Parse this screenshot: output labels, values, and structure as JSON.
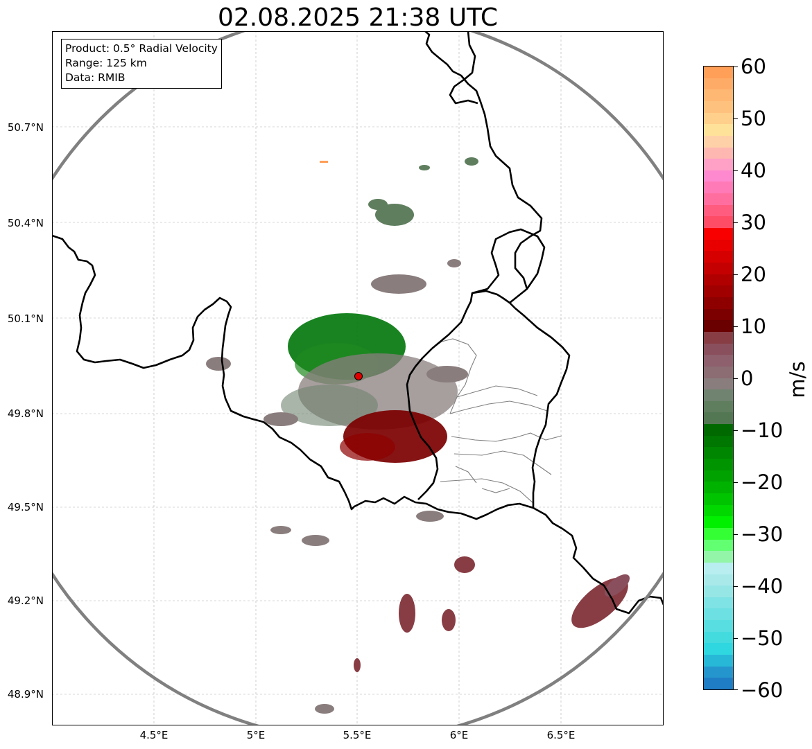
{
  "title": "02.08.2025 21:38 UTC",
  "info_box": {
    "product": "Product: 0.5° Radial Velocity",
    "range": "Range: 125 km",
    "data": "Data: RMIB"
  },
  "axes": {
    "lat_labels": [
      "50.7°N",
      "50.4°N",
      "50.1°N",
      "49.8°N",
      "49.5°N",
      "49.2°N",
      "48.9°N"
    ],
    "lat_values": [
      50.7,
      50.4,
      50.1,
      49.8,
      49.5,
      49.2,
      48.9
    ],
    "lon_labels": [
      "4.5°E",
      "5°E",
      "5.5°E",
      "6°E",
      "6.5°E"
    ],
    "lon_values": [
      4.5,
      5.0,
      5.5,
      6.0,
      6.5
    ]
  },
  "radar_site": {
    "lat": 49.914,
    "lon": 5.505
  },
  "colorbar": {
    "unit": "m/s",
    "min": -60,
    "max": 60,
    "tick_labels": [
      "60",
      "50",
      "40",
      "30",
      "20",
      "10",
      "0",
      "−10",
      "−20",
      "−30",
      "−40",
      "−50",
      "−60"
    ],
    "tick_values": [
      60,
      50,
      40,
      30,
      20,
      10,
      0,
      -10,
      -20,
      -30,
      -40,
      -50,
      -60
    ],
    "colors_top_to_bottom": [
      "#ff9f58",
      "#ffab68",
      "#ffb873",
      "#ffc27e",
      "#ffd08b",
      "#ffe29a",
      "#ffd1a8",
      "#ffb7b2",
      "#ffa0c6",
      "#ff89cf",
      "#ff7ab6",
      "#ff6e9f",
      "#ff5c80",
      "#ff4c66",
      "#f90000",
      "#e80000",
      "#d60000",
      "#c40000",
      "#b00000",
      "#a00000",
      "#8e0000",
      "#7c0000",
      "#6a0000",
      "#883d44",
      "#8a4f5c",
      "#8e5f6c",
      "#8c6d74",
      "#8a7d7d",
      "#6f8370",
      "#5f7e5e",
      "#537653",
      "#006a00",
      "#007700",
      "#008600",
      "#009400",
      "#00a200",
      "#00b200",
      "#00c400",
      "#00d800",
      "#00f000",
      "#34ff34",
      "#62ff72",
      "#93f5a8",
      "#b8eef0",
      "#a9e9ea",
      "#97e6e6",
      "#7fe2e4",
      "#6ce0e2",
      "#58dde0",
      "#44dbde",
      "#2fd7e0",
      "#27b8d8",
      "#2596cd",
      "#1f7dc5"
    ]
  },
  "colors": {
    "border_country": "#000000",
    "border_admin": "#808080",
    "range_ring": "#808080",
    "gridline": "#b0b0b0",
    "site_marker": "#e00000"
  }
}
